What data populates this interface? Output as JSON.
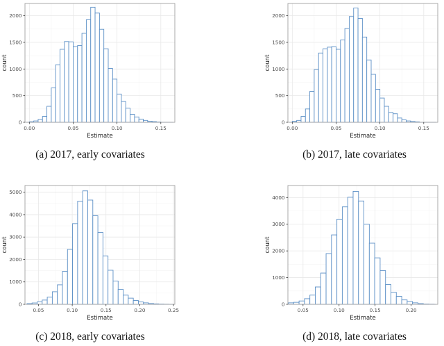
{
  "figure": {
    "background": "#ffffff",
    "bar_fill": "#ffffff",
    "bar_stroke": "#5b8fc6",
    "zero_line_color": "#5b8fc6",
    "grid_major": "#e8e8e8",
    "grid_minor": "#f4f4f4",
    "panel_border": "#9f9f9f",
    "tick_mark_color": "#333333",
    "tick_label_color": "#4d4d4d",
    "axis_title_color": "#262626",
    "caption_color": "#131313"
  },
  "chart_data": [
    {
      "id": "a",
      "type": "bar",
      "subtype": "histogram",
      "caption": "(a) 2017, early covariates",
      "xlabel": "Estimate",
      "ylabel": "count",
      "xlim": [
        -0.005,
        0.166
      ],
      "ylim": [
        0,
        2230
      ],
      "x_ticks": [
        0.0,
        0.05,
        0.1,
        0.15
      ],
      "x_tick_labels": [
        "0.00",
        "0.05",
        "0.10",
        "0.15"
      ],
      "y_ticks": [
        0,
        500,
        1000,
        1500,
        2000
      ],
      "y_tick_labels": [
        "0",
        "500",
        "1000",
        "1500",
        "2000"
      ],
      "grid": true,
      "legend": "none",
      "bin_start": 0.0,
      "bin_width": 0.005,
      "values": [
        10,
        25,
        55,
        110,
        300,
        645,
        1080,
        1370,
        1515,
        1510,
        1420,
        1440,
        1670,
        1925,
        2160,
        2050,
        1745,
        1380,
        1010,
        810,
        530,
        390,
        265,
        150,
        100,
        60,
        35,
        20,
        12,
        5
      ]
    },
    {
      "id": "b",
      "type": "bar",
      "subtype": "histogram",
      "caption": "(b) 2017, late covariates",
      "xlabel": "Estimate",
      "ylabel": "count",
      "xlim": [
        -0.005,
        0.166
      ],
      "ylim": [
        0,
        2230
      ],
      "x_ticks": [
        0.0,
        0.05,
        0.1,
        0.15
      ],
      "x_tick_labels": [
        "0.00",
        "0.05",
        "0.10",
        "0.15"
      ],
      "y_ticks": [
        0,
        500,
        1000,
        1500,
        2000
      ],
      "y_tick_labels": [
        "0",
        "500",
        "1000",
        "1500",
        "2000"
      ],
      "grid": true,
      "legend": "none",
      "bin_start": 0.0,
      "bin_width": 0.005,
      "values": [
        20,
        35,
        110,
        250,
        580,
        990,
        1300,
        1380,
        1410,
        1420,
        1370,
        1545,
        1760,
        1985,
        2145,
        1950,
        1600,
        1170,
        900,
        620,
        455,
        300,
        185,
        160,
        80,
        45,
        25,
        15,
        8
      ]
    },
    {
      "id": "c",
      "type": "bar",
      "subtype": "histogram",
      "caption": "(c) 2018, early covariates",
      "xlabel": "Estimate",
      "ylabel": "count",
      "xlim": [
        0.03,
        0.252
      ],
      "ylim": [
        0,
        5300
      ],
      "x_ticks": [
        0.05,
        0.1,
        0.15,
        0.2,
        0.25
      ],
      "x_tick_labels": [
        "0.05",
        "0.10",
        "0.15",
        "0.20",
        "0.25"
      ],
      "y_ticks": [
        0,
        1000,
        2000,
        3000,
        4000,
        5000
      ],
      "y_tick_labels": [
        "0",
        "1000",
        "2000",
        "3000",
        "4000",
        "5000"
      ],
      "grid": true,
      "legend": "none",
      "bin_start": 0.033,
      "bin_width": 0.0075,
      "values": [
        30,
        60,
        110,
        190,
        320,
        560,
        870,
        1470,
        2450,
        3600,
        4600,
        5060,
        4650,
        3950,
        3210,
        2160,
        1520,
        1040,
        670,
        410,
        275,
        170,
        105,
        65,
        35,
        20,
        10,
        5
      ]
    },
    {
      "id": "d",
      "type": "bar",
      "subtype": "histogram",
      "caption": "(d) 2018, late covariates",
      "xlabel": "Estimate",
      "ylabel": "count",
      "xlim": [
        0.029,
        0.237
      ],
      "ylim": [
        0,
        4450
      ],
      "x_ticks": [
        0.05,
        0.1,
        0.15,
        0.2
      ],
      "x_tick_labels": [
        "0.05",
        "0.10",
        "0.15",
        "0.20"
      ],
      "y_ticks": [
        0,
        1000,
        2000,
        3000,
        4000
      ],
      "y_tick_labels": [
        "0",
        "1000",
        "2000",
        "3000",
        "4000"
      ],
      "grid": true,
      "legend": "none",
      "bin_start": 0.0295,
      "bin_width": 0.0075,
      "values": [
        55,
        75,
        125,
        210,
        345,
        650,
        1170,
        1900,
        2600,
        3190,
        3650,
        4010,
        4230,
        3870,
        3000,
        2290,
        1740,
        1265,
        740,
        450,
        300,
        165,
        105,
        55,
        25,
        10,
        5
      ]
    }
  ]
}
